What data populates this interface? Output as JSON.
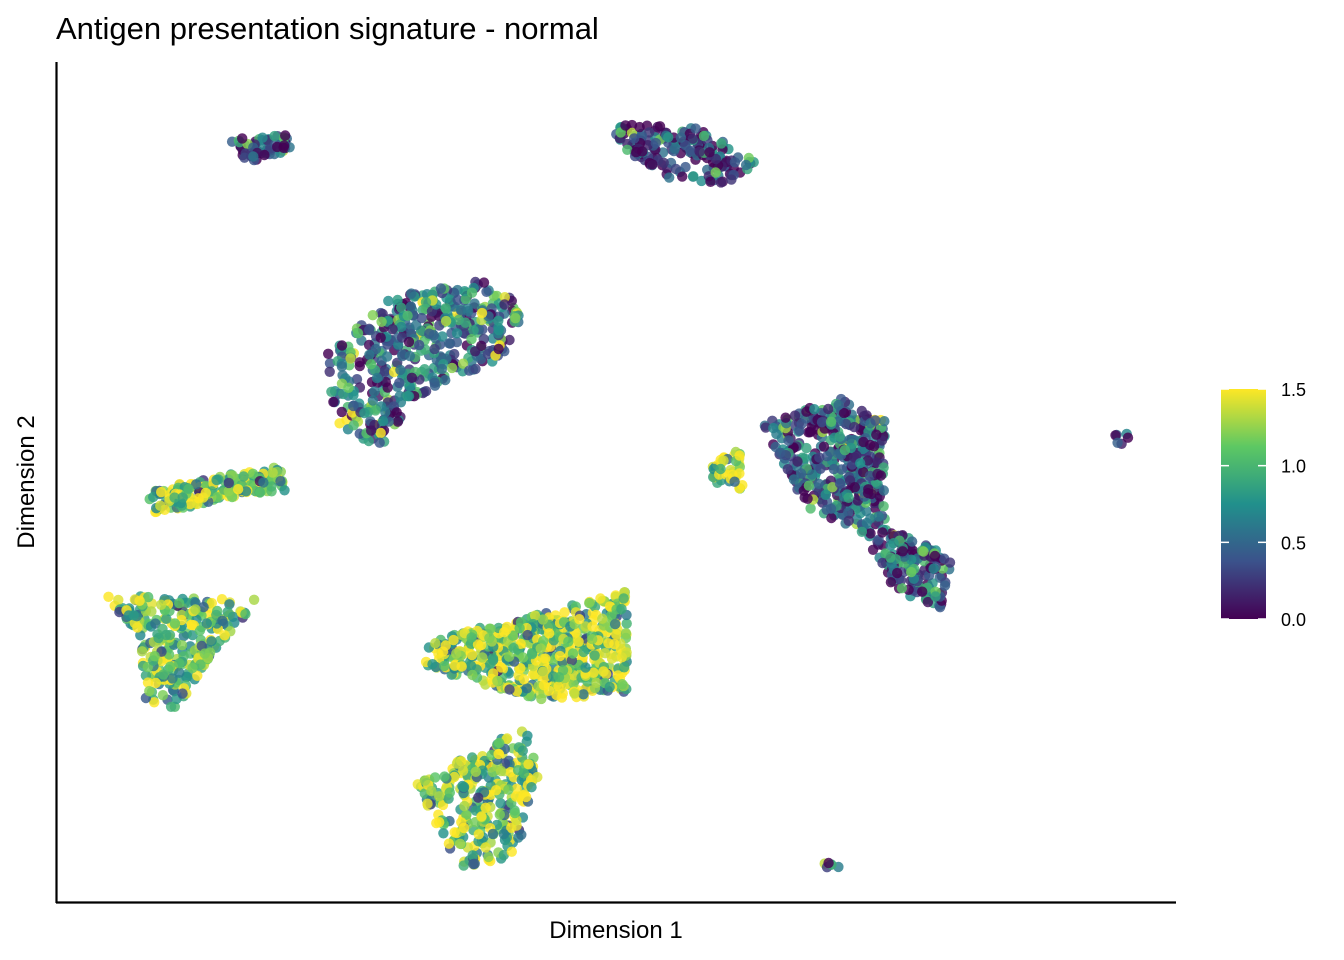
{
  "chart_data": {
    "type": "scatter",
    "title": "Antigen presentation signature - normal",
    "xlabel": "Dimension 1",
    "ylabel": "Dimension 2",
    "x_ticks": [],
    "y_ticks": [],
    "grid": false,
    "colorbar": {
      "placement": "right",
      "palette": "viridis",
      "range": [
        0.0,
        1.5
      ],
      "ticks": [
        "0.0",
        "0.5",
        "1.0",
        "1.5"
      ],
      "tick_values": [
        0.0,
        0.5,
        1.0,
        1.5
      ],
      "colors": [
        "#440154",
        "#3b528b",
        "#21908c",
        "#5dc863",
        "#fde725"
      ]
    },
    "clusters": [
      {
        "shape": [
          [
            0.155,
            0.092
          ],
          [
            0.205,
            0.087
          ],
          [
            0.21,
            0.105
          ],
          [
            0.17,
            0.12
          ]
        ],
        "n": 60,
        "level": 0.35
      },
      {
        "shape": [
          [
            0.49,
            0.07
          ],
          [
            0.58,
            0.08
          ],
          [
            0.625,
            0.12
          ],
          [
            0.6,
            0.145
          ],
          [
            0.55,
            0.14
          ],
          [
            0.51,
            0.11
          ]
        ],
        "n": 170,
        "level": 0.3
      },
      {
        "shape": [
          [
            0.24,
            0.35
          ],
          [
            0.3,
            0.28
          ],
          [
            0.38,
            0.26
          ],
          [
            0.42,
            0.29
          ],
          [
            0.4,
            0.35
          ],
          [
            0.32,
            0.4
          ],
          [
            0.29,
            0.46
          ],
          [
            0.25,
            0.43
          ]
        ],
        "n": 480,
        "level": 0.6
      },
      {
        "shape": [
          [
            0.08,
            0.51
          ],
          [
            0.2,
            0.48
          ],
          [
            0.205,
            0.51
          ],
          [
            0.15,
            0.52
          ],
          [
            0.09,
            0.54
          ]
        ],
        "n": 190,
        "level": 1.15
      },
      {
        "shape": [
          [
            0.63,
            0.43
          ],
          [
            0.7,
            0.4
          ],
          [
            0.74,
            0.42
          ],
          [
            0.74,
            0.55
          ],
          [
            0.8,
            0.59
          ],
          [
            0.79,
            0.65
          ],
          [
            0.75,
            0.63
          ],
          [
            0.72,
            0.56
          ],
          [
            0.67,
            0.53
          ],
          [
            0.65,
            0.48
          ]
        ],
        "n": 560,
        "level": 0.4
      },
      {
        "shape": [
          [
            0.584,
            0.48
          ],
          [
            0.61,
            0.46
          ],
          [
            0.614,
            0.51
          ],
          [
            0.587,
            0.5
          ]
        ],
        "n": 45,
        "level": 1.35
      },
      {
        "shape": [
          [
            0.045,
            0.635
          ],
          [
            0.18,
            0.64
          ],
          [
            0.15,
            0.69
          ],
          [
            0.11,
            0.77
          ],
          [
            0.08,
            0.76
          ],
          [
            0.075,
            0.69
          ]
        ],
        "n": 270,
        "level": 1.1
      },
      {
        "shape": [
          [
            0.33,
            0.69
          ],
          [
            0.45,
            0.65
          ],
          [
            0.51,
            0.63
          ],
          [
            0.51,
            0.75
          ],
          [
            0.44,
            0.76
          ],
          [
            0.4,
            0.75
          ],
          [
            0.33,
            0.72
          ]
        ],
        "n": 620,
        "level": 1.25
      },
      {
        "shape": [
          [
            0.32,
            0.86
          ],
          [
            0.42,
            0.79
          ],
          [
            0.43,
            0.85
          ],
          [
            0.41,
            0.95
          ],
          [
            0.36,
            0.96
          ],
          [
            0.34,
            0.91
          ]
        ],
        "n": 300,
        "level": 1.15
      },
      {
        "shape": [
          [
            0.707,
            0.52
          ],
          [
            0.713,
            0.505
          ],
          [
            0.73,
            0.505
          ],
          [
            0.728,
            0.52
          ]
        ],
        "n": 10,
        "level": 0.55
      },
      {
        "shape": [
          [
            0.945,
            0.44
          ],
          [
            0.958,
            0.44
          ],
          [
            0.958,
            0.455
          ],
          [
            0.945,
            0.455
          ]
        ],
        "n": 6,
        "level": 0.45
      },
      {
        "shape": [
          [
            0.682,
            0.95
          ],
          [
            0.693,
            0.945
          ],
          [
            0.7,
            0.96
          ],
          [
            0.69,
            0.965
          ]
        ],
        "n": 6,
        "level": 0.5
      }
    ]
  }
}
